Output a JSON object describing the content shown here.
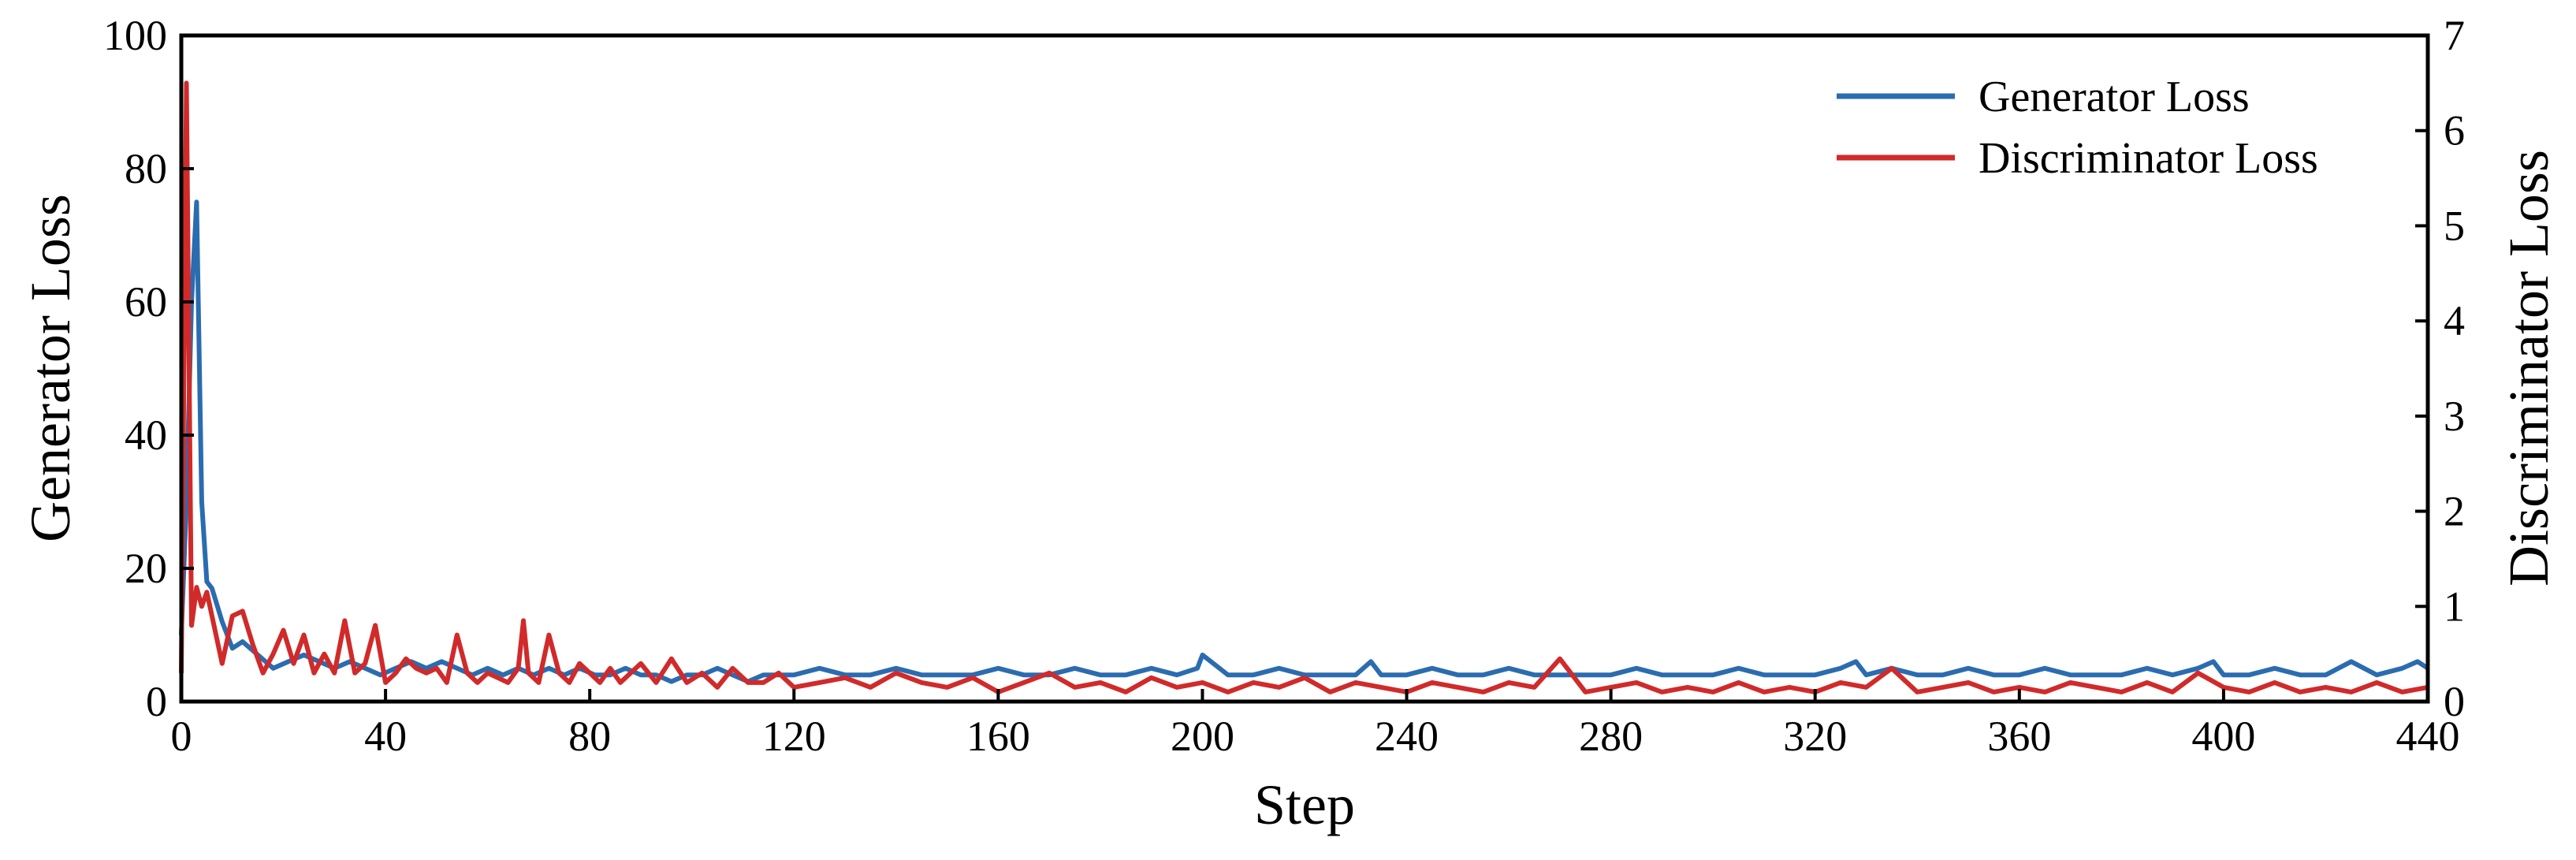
{
  "chart_data": {
    "type": "line",
    "xlabel": "Step",
    "ylabel": "Generator Loss",
    "y2label": "Discriminator Loss",
    "xlim": [
      0,
      440
    ],
    "ylim": [
      0,
      100
    ],
    "y2lim": [
      0,
      7
    ],
    "xticks": [
      0,
      40,
      80,
      120,
      160,
      200,
      240,
      280,
      320,
      360,
      400,
      440
    ],
    "yticks": [
      0,
      20,
      40,
      60,
      80,
      100
    ],
    "y2ticks": [
      0,
      1,
      2,
      3,
      4,
      5,
      6,
      7
    ],
    "grid": false,
    "legend_position": "top-right",
    "series": [
      {
        "name": "Generator Loss",
        "axis": "left",
        "color": "#2b6cb0",
        "x": [
          0,
          1,
          2,
          3,
          4,
          5,
          6,
          8,
          10,
          12,
          15,
          18,
          21,
          24,
          27,
          30,
          33,
          36,
          39,
          42,
          45,
          48,
          51,
          54,
          57,
          60,
          63,
          66,
          69,
          72,
          75,
          78,
          81,
          84,
          87,
          90,
          93,
          96,
          99,
          102,
          105,
          108,
          111,
          114,
          117,
          120,
          125,
          130,
          135,
          140,
          145,
          150,
          155,
          160,
          165,
          170,
          175,
          180,
          185,
          190,
          195,
          199,
          200,
          205,
          210,
          215,
          220,
          225,
          230,
          233,
          235,
          240,
          245,
          250,
          255,
          260,
          265,
          270,
          275,
          280,
          285,
          290,
          295,
          300,
          305,
          310,
          315,
          320,
          325,
          328,
          330,
          335,
          340,
          345,
          350,
          355,
          360,
          365,
          370,
          375,
          380,
          385,
          390,
          395,
          398,
          400,
          405,
          410,
          415,
          420,
          425,
          430,
          435,
          438,
          440
        ],
        "values": [
          10,
          30,
          60,
          75,
          30,
          18,
          17,
          12,
          8,
          9,
          7,
          5,
          6,
          7,
          6,
          5,
          6,
          5,
          4,
          5,
          6,
          5,
          6,
          5,
          4,
          5,
          4,
          5,
          4,
          5,
          4,
          5,
          4,
          4,
          5,
          4,
          4,
          3,
          4,
          4,
          5,
          4,
          3,
          4,
          4,
          4,
          5,
          4,
          4,
          5,
          4,
          4,
          4,
          5,
          4,
          4,
          5,
          4,
          4,
          5,
          4,
          5,
          7,
          4,
          4,
          5,
          4,
          4,
          4,
          6,
          4,
          4,
          5,
          4,
          4,
          5,
          4,
          4,
          4,
          4,
          5,
          4,
          4,
          4,
          5,
          4,
          4,
          4,
          5,
          6,
          4,
          5,
          4,
          4,
          5,
          4,
          4,
          5,
          4,
          4,
          4,
          5,
          4,
          5,
          6,
          4,
          4,
          5,
          4,
          4,
          6,
          4,
          5,
          6,
          5
        ]
      },
      {
        "name": "Discriminator Loss",
        "axis": "right",
        "color": "#d12a2a",
        "x": [
          0,
          1,
          2,
          3,
          4,
          5,
          6,
          8,
          10,
          12,
          14,
          16,
          18,
          20,
          22,
          24,
          26,
          28,
          30,
          32,
          34,
          36,
          38,
          40,
          42,
          44,
          46,
          48,
          50,
          52,
          54,
          56,
          58,
          60,
          62,
          64,
          66,
          67,
          68,
          70,
          72,
          74,
          76,
          78,
          80,
          82,
          84,
          86,
          88,
          90,
          93,
          96,
          99,
          102,
          105,
          108,
          111,
          114,
          117,
          120,
          125,
          130,
          135,
          140,
          145,
          150,
          155,
          160,
          165,
          170,
          175,
          180,
          185,
          190,
          195,
          200,
          205,
          210,
          215,
          220,
          225,
          230,
          235,
          240,
          245,
          250,
          255,
          260,
          265,
          270,
          275,
          280,
          285,
          290,
          295,
          300,
          305,
          310,
          315,
          320,
          325,
          330,
          335,
          340,
          345,
          350,
          355,
          360,
          365,
          370,
          375,
          380,
          385,
          390,
          395,
          400,
          405,
          410,
          415,
          420,
          425,
          430,
          435,
          440
        ],
        "values": [
          0.3,
          6.5,
          0.8,
          1.2,
          1.0,
          1.15,
          0.9,
          0.4,
          0.9,
          0.95,
          0.6,
          0.3,
          0.5,
          0.75,
          0.4,
          0.7,
          0.3,
          0.5,
          0.3,
          0.85,
          0.3,
          0.4,
          0.8,
          0.2,
          0.3,
          0.45,
          0.35,
          0.3,
          0.35,
          0.2,
          0.7,
          0.3,
          0.2,
          0.3,
          0.25,
          0.2,
          0.35,
          0.85,
          0.3,
          0.2,
          0.7,
          0.3,
          0.2,
          0.4,
          0.3,
          0.2,
          0.35,
          0.2,
          0.3,
          0.4,
          0.2,
          0.45,
          0.2,
          0.3,
          0.15,
          0.35,
          0.2,
          0.2,
          0.3,
          0.15,
          0.2,
          0.25,
          0.15,
          0.3,
          0.2,
          0.15,
          0.25,
          0.1,
          0.2,
          0.3,
          0.15,
          0.2,
          0.1,
          0.25,
          0.15,
          0.2,
          0.1,
          0.2,
          0.15,
          0.25,
          0.1,
          0.2,
          0.15,
          0.1,
          0.2,
          0.15,
          0.1,
          0.2,
          0.15,
          0.45,
          0.1,
          0.15,
          0.2,
          0.1,
          0.15,
          0.1,
          0.2,
          0.1,
          0.15,
          0.1,
          0.2,
          0.15,
          0.35,
          0.1,
          0.15,
          0.2,
          0.1,
          0.15,
          0.1,
          0.2,
          0.15,
          0.1,
          0.2,
          0.1,
          0.3,
          0.15,
          0.1,
          0.2,
          0.1,
          0.15,
          0.1,
          0.2,
          0.1,
          0.15
        ]
      }
    ]
  }
}
